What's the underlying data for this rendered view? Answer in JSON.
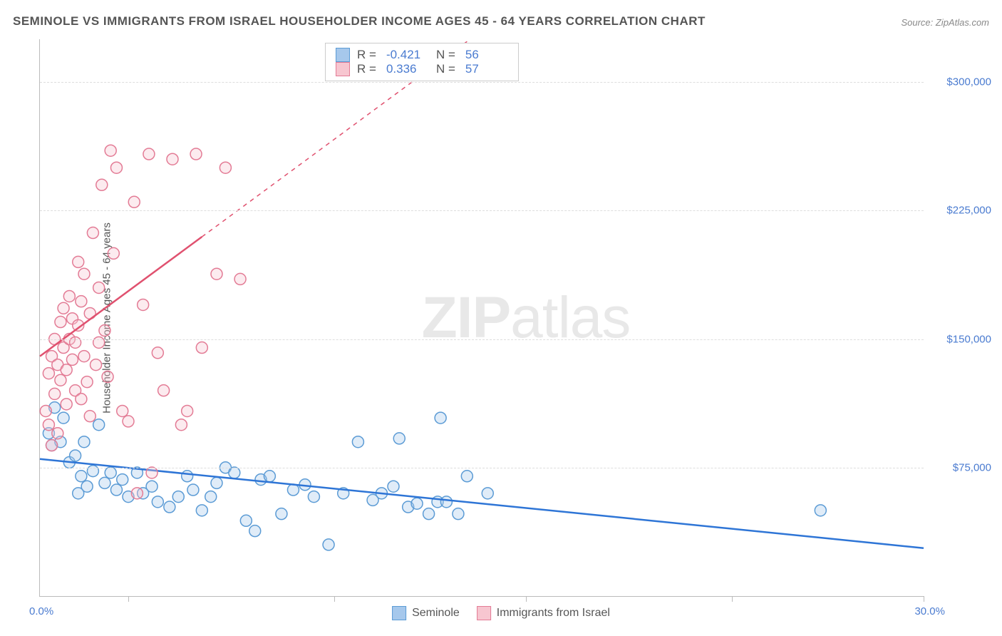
{
  "title": "SEMINOLE VS IMMIGRANTS FROM ISRAEL HOUSEHOLDER INCOME AGES 45 - 64 YEARS CORRELATION CHART",
  "source": "Source: ZipAtlas.com",
  "y_axis_title": "Householder Income Ages 45 - 64 years",
  "watermark_bold": "ZIP",
  "watermark_light": "atlas",
  "chart": {
    "type": "scatter",
    "xlim": [
      0,
      30
    ],
    "ylim": [
      0,
      325000
    ],
    "x_ticks_pct": [
      3,
      10,
      16.5,
      23.5,
      30
    ],
    "y_gridlines": [
      75000,
      150000,
      225000,
      300000
    ],
    "y_tick_labels": [
      "$75,000",
      "$150,000",
      "$225,000",
      "$300,000"
    ],
    "x_min_label": "0.0%",
    "x_max_label": "30.0%",
    "background_color": "#ffffff",
    "grid_color": "#dddddd",
    "marker_radius": 8,
    "marker_stroke_width": 1.5,
    "marker_fill_opacity": 0.35,
    "line_width": 2.5,
    "series": [
      {
        "name": "Seminole",
        "color_fill": "#a6c8ec",
        "color_stroke": "#5b9bd5",
        "line_color": "#2e75d6",
        "r_value": "-0.421",
        "n_value": "56",
        "trend": {
          "x1": 0,
          "y1": 80000,
          "x2": 30,
          "y2": 28000,
          "dash_from_x": null
        },
        "points": [
          [
            0.3,
            95000
          ],
          [
            0.5,
            110000
          ],
          [
            0.4,
            88000
          ],
          [
            0.7,
            90000
          ],
          [
            0.8,
            104000
          ],
          [
            1.0,
            78000
          ],
          [
            1.2,
            82000
          ],
          [
            1.4,
            70000
          ],
          [
            1.5,
            90000
          ],
          [
            1.8,
            73000
          ],
          [
            2.0,
            100000
          ],
          [
            2.2,
            66000
          ],
          [
            2.4,
            72000
          ],
          [
            2.6,
            62000
          ],
          [
            2.8,
            68000
          ],
          [
            1.3,
            60000
          ],
          [
            1.6,
            64000
          ],
          [
            3.0,
            58000
          ],
          [
            3.3,
            72000
          ],
          [
            3.5,
            60000
          ],
          [
            3.8,
            64000
          ],
          [
            4.0,
            55000
          ],
          [
            4.4,
            52000
          ],
          [
            4.7,
            58000
          ],
          [
            5.0,
            70000
          ],
          [
            5.2,
            62000
          ],
          [
            5.5,
            50000
          ],
          [
            5.8,
            58000
          ],
          [
            6.0,
            66000
          ],
          [
            6.3,
            75000
          ],
          [
            6.6,
            72000
          ],
          [
            7.0,
            44000
          ],
          [
            7.3,
            38000
          ],
          [
            7.5,
            68000
          ],
          [
            7.8,
            70000
          ],
          [
            8.2,
            48000
          ],
          [
            8.6,
            62000
          ],
          [
            9.0,
            65000
          ],
          [
            9.3,
            58000
          ],
          [
            9.8,
            30000
          ],
          [
            10.3,
            60000
          ],
          [
            10.8,
            90000
          ],
          [
            11.3,
            56000
          ],
          [
            11.6,
            60000
          ],
          [
            12.0,
            64000
          ],
          [
            12.5,
            52000
          ],
          [
            12.8,
            54000
          ],
          [
            13.2,
            48000
          ],
          [
            13.5,
            55000
          ],
          [
            13.6,
            104000
          ],
          [
            13.8,
            55000
          ],
          [
            14.2,
            48000
          ],
          [
            14.5,
            70000
          ],
          [
            15.2,
            60000
          ],
          [
            12.2,
            92000
          ],
          [
            26.5,
            50000
          ]
        ]
      },
      {
        "name": "Immigrants from Israel",
        "color_fill": "#f7c6d0",
        "color_stroke": "#e37b95",
        "line_color": "#e0516f",
        "r_value": "0.336",
        "n_value": "57",
        "trend": {
          "x1": 0,
          "y1": 140000,
          "x2": 30,
          "y2": 520000,
          "dash_from_x": 5.5
        },
        "points": [
          [
            0.2,
            108000
          ],
          [
            0.3,
            130000
          ],
          [
            0.4,
            140000
          ],
          [
            0.5,
            118000
          ],
          [
            0.5,
            150000
          ],
          [
            0.6,
            135000
          ],
          [
            0.7,
            160000
          ],
          [
            0.7,
            126000
          ],
          [
            0.8,
            145000
          ],
          [
            0.8,
            168000
          ],
          [
            0.9,
            132000
          ],
          [
            1.0,
            175000
          ],
          [
            1.0,
            150000
          ],
          [
            1.1,
            138000
          ],
          [
            1.1,
            162000
          ],
          [
            1.2,
            148000
          ],
          [
            1.3,
            195000
          ],
          [
            1.3,
            158000
          ],
          [
            1.4,
            172000
          ],
          [
            1.5,
            188000
          ],
          [
            1.5,
            140000
          ],
          [
            1.6,
            125000
          ],
          [
            1.7,
            165000
          ],
          [
            1.8,
            212000
          ],
          [
            1.9,
            135000
          ],
          [
            2.0,
            180000
          ],
          [
            2.1,
            240000
          ],
          [
            2.2,
            155000
          ],
          [
            2.3,
            128000
          ],
          [
            2.5,
            200000
          ],
          [
            2.6,
            250000
          ],
          [
            2.8,
            108000
          ],
          [
            3.0,
            102000
          ],
          [
            3.2,
            230000
          ],
          [
            3.5,
            170000
          ],
          [
            3.7,
            258000
          ],
          [
            3.8,
            72000
          ],
          [
            4.0,
            142000
          ],
          [
            4.2,
            120000
          ],
          [
            4.5,
            255000
          ],
          [
            4.8,
            100000
          ],
          [
            5.0,
            108000
          ],
          [
            5.3,
            258000
          ],
          [
            5.5,
            145000
          ],
          [
            6.0,
            188000
          ],
          [
            6.3,
            250000
          ],
          [
            6.8,
            185000
          ],
          [
            0.3,
            100000
          ],
          [
            0.6,
            95000
          ],
          [
            0.9,
            112000
          ],
          [
            1.2,
            120000
          ],
          [
            1.4,
            115000
          ],
          [
            2.4,
            260000
          ],
          [
            1.7,
            105000
          ],
          [
            3.3,
            60000
          ],
          [
            2.0,
            148000
          ],
          [
            0.4,
            88000
          ]
        ]
      }
    ]
  },
  "legend_bottom": [
    "Seminole",
    "Immigrants from Israel"
  ]
}
